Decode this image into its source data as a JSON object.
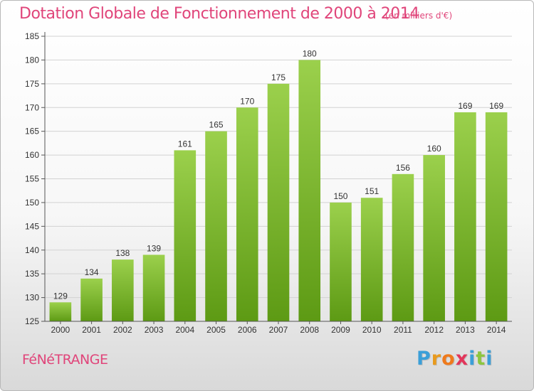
{
  "title": "Dotation Globale de Fonctionnement de 2000 à 2014",
  "subtitle": "(en milliers d'€)",
  "town": "FéNéTRANGE",
  "logo": {
    "letters": [
      "P",
      "r",
      "o",
      "x",
      "i",
      "t",
      "i"
    ],
    "colors": [
      "#3b9fd8",
      "#e89a1e",
      "#ef7a1c",
      "#e2365b",
      "#3b9fd8",
      "#8cc63f",
      "#3b9fd8"
    ]
  },
  "colors": {
    "bar_top": "#9bd04c",
    "bar_bottom": "#5d9a14",
    "title": "#e0457a"
  },
  "chart_data": {
    "type": "bar",
    "categories": [
      "2000",
      "2001",
      "2002",
      "2003",
      "2004",
      "2005",
      "2006",
      "2007",
      "2008",
      "2009",
      "2010",
      "2011",
      "2012",
      "2013",
      "2014"
    ],
    "values": [
      129,
      134,
      138,
      139,
      161,
      165,
      170,
      175,
      180,
      150,
      151,
      156,
      160,
      169,
      169
    ],
    "data_labels": [
      "129",
      "134",
      "138",
      "139",
      "161",
      "165",
      "170",
      "175",
      "180",
      "150",
      "151",
      "156",
      "160",
      "169",
      "169"
    ],
    "yticks": [
      "125",
      "130",
      "135",
      "140",
      "145",
      "150",
      "155",
      "160",
      "165",
      "170",
      "175",
      "180",
      "185"
    ],
    "ylim": [
      125,
      185
    ],
    "grid": true
  }
}
